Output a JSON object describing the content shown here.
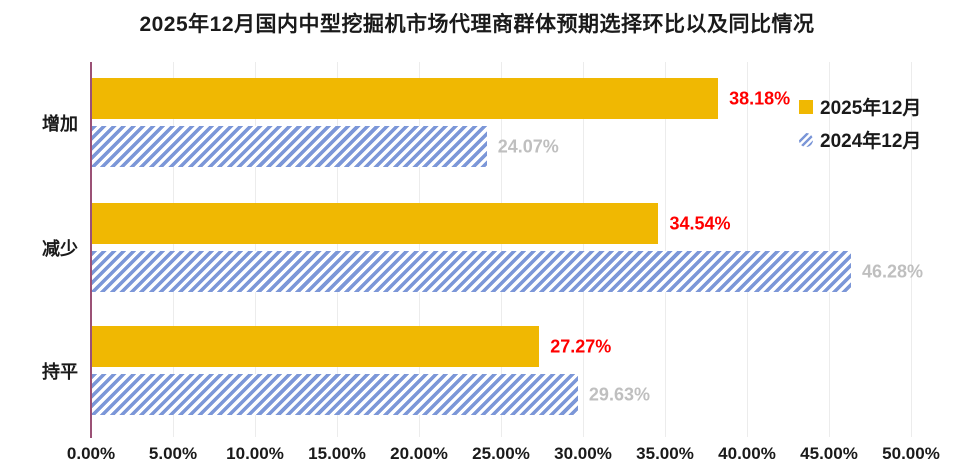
{
  "title": "2025年12月国内中型挖掘机市场代理商群体预期选择环比以及同比情况",
  "chart_data": {
    "type": "bar",
    "orientation": "horizontal",
    "title": "2025年12月国内中型挖掘机市场代理商群体预期选择环比以及同比情况",
    "categories": [
      "增加",
      "减少",
      "持平"
    ],
    "series": [
      {
        "name": "2025年12月",
        "values": [
          38.18,
          34.54,
          27.27
        ],
        "value_labels": [
          "38.18%",
          "34.54%",
          "27.27%"
        ],
        "style": "solid",
        "color": "#F0B802",
        "label_color": "#FF0000"
      },
      {
        "name": "2024年12月",
        "values": [
          24.07,
          46.28,
          29.63
        ],
        "value_labels": [
          "24.07%",
          "46.28%",
          "29.63%"
        ],
        "style": "hatched",
        "color": "#7C97D8",
        "label_color": "#BFBFBF"
      }
    ],
    "xlim": [
      0,
      50
    ],
    "x_tick_step": 5,
    "x_ticks": [
      "0.00%",
      "5.00%",
      "10.00%",
      "15.00%",
      "20.00%",
      "25.00%",
      "30.00%",
      "35.00%",
      "40.00%",
      "45.00%",
      "50.00%"
    ],
    "grid": "vertical",
    "legend_position": "top-right",
    "colors": {
      "axis_line": "#9B5176",
      "gridline": "#ececec",
      "background": "#ffffff"
    }
  }
}
